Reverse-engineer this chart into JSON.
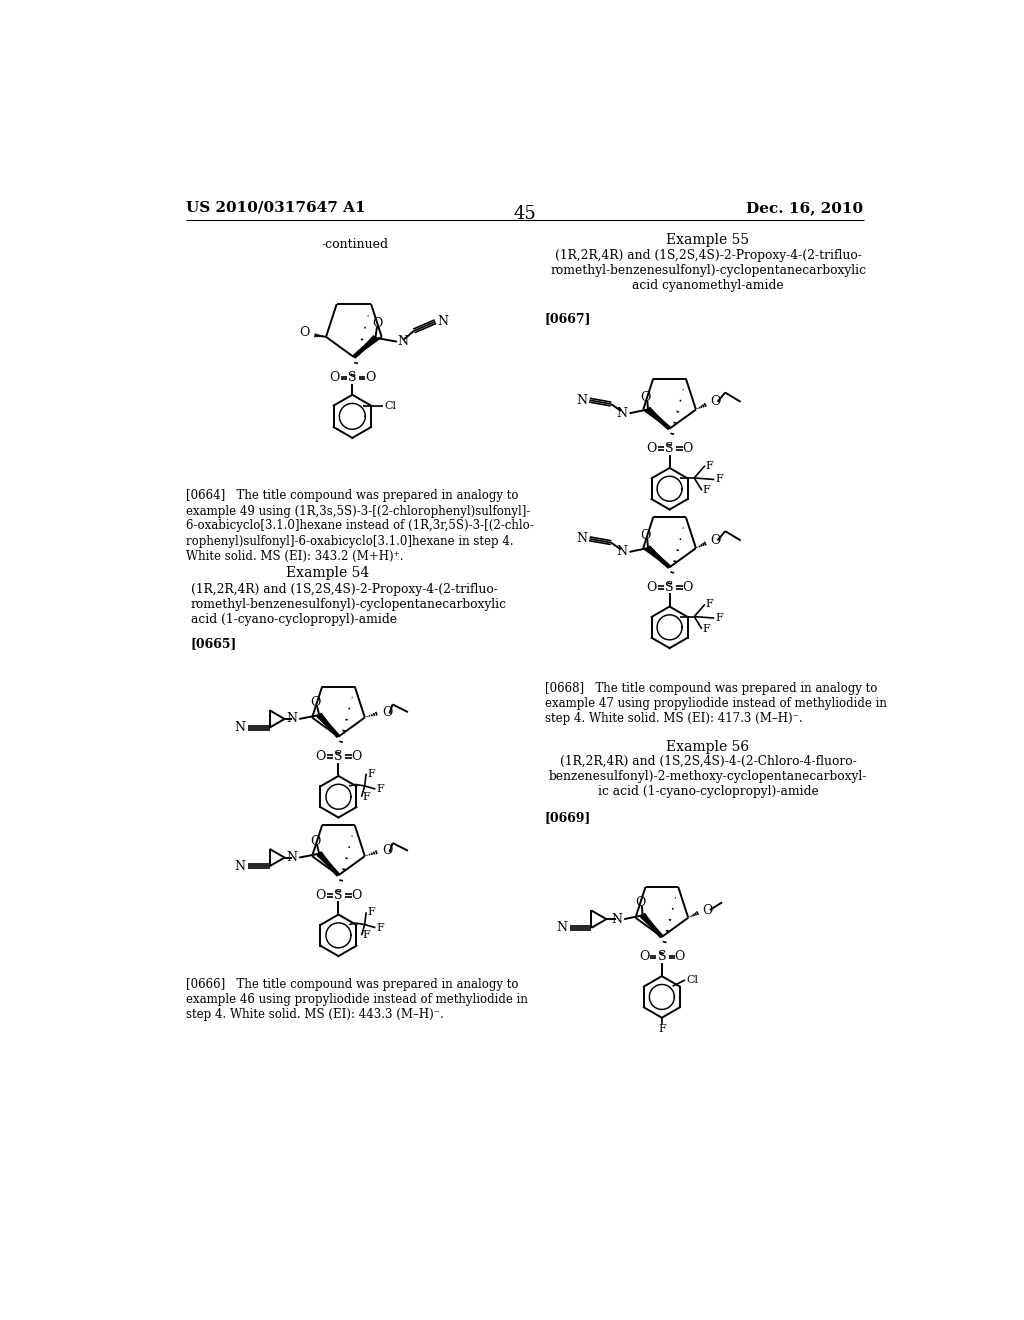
{
  "page_number": "45",
  "patent_number": "US 2010/0317647 A1",
  "patent_date": "Dec. 16, 2010",
  "background_color": "#ffffff",
  "figsize": [
    10.24,
    13.2
  ],
  "dpi": 100,
  "header_left": "US 2010/0317647 A1",
  "header_center": "45",
  "header_right": "Dec. 16, 2010",
  "continued_label": "-continued",
  "para0664": "[0664]   The title compound was prepared in analogy to\nexample 49 using (1R,3s,5S)-3-[(2-chlorophenyl)sulfonyl]-\n6-oxabicyclo[3.1.0]hexane instead of (1R,3r,5S)-3-[(2-chlo-\nrophenyl)sulfonyl]-6-oxabicyclo[3.1.0]hexane in step 4.\nWhite solid. MS (EI): 343.2 (M+H)⁺.",
  "ex54_title": "Example 54",
  "ex54_sub": "(1R,2R,4R) and (1S,2S,4S)-2-Propoxy-4-(2-trifluo-\nromethyl-benzenesulfonyl)-cyclopentanecarboxylic\nacid (1-cyano-cyclopropyl)-amide",
  "ex54_ref": "[0665]",
  "ex54_note": "[0666]   The title compound was prepared in analogy to\nexample 46 using propyliodide instead of methyliodide in\nstep 4. White solid. MS (EI): 443.3 (M–H)⁻.",
  "ex55_title": "Example 55",
  "ex55_sub": "(1R,2R,4R) and (1S,2S,4S)-2-Propoxy-4-(2-trifluo-\nromethyl-benzenesulfonyl)-cyclopentanecarboxylic\nacid cyanomethyl-amide",
  "ex55_ref": "[0667]",
  "ex55_note": "[0668]   The title compound was prepared in analogy to\nexample 47 using propyliodide instead of methyliodide in\nstep 4. White solid. MS (EI): 417.3 (M–H)⁻.",
  "ex56_title": "Example 56",
  "ex56_sub": "(1R,2R,4R) and (1S,2S,4S)-4-(2-Chloro-4-fluoro-\nbenzenesulfonyl)-2-methoxy-cyclopentanecarboxyl-\nic acid (1-cyano-cyclopropyl)-amide",
  "ex56_ref": "[0669]"
}
